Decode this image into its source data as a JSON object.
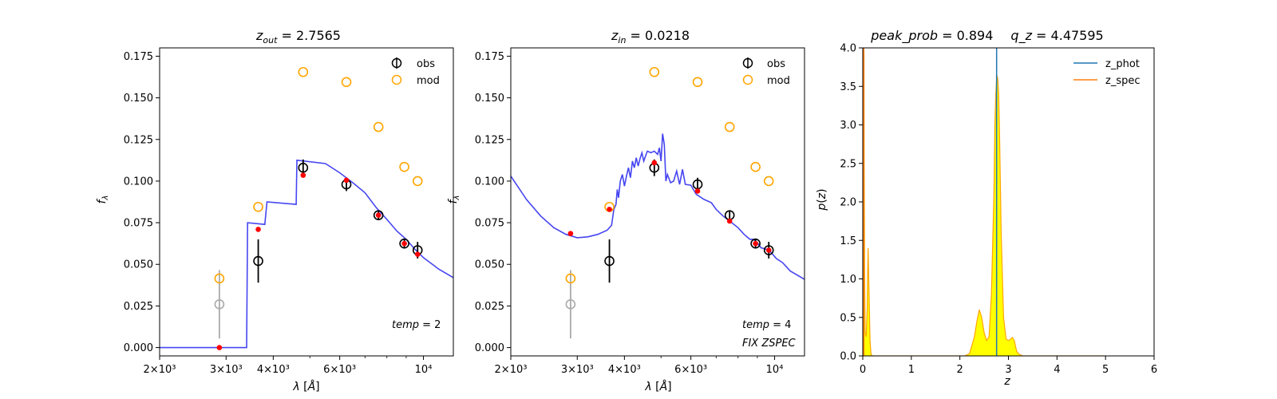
{
  "chart_data": [
    {
      "type": "scatter",
      "title": "z_out = 2.7565",
      "xlabel": "λ [Å]",
      "ylabel": "f_λ",
      "xscale": "log",
      "xlim": [
        2000,
        12000
      ],
      "ylim": [
        -0.005,
        0.18
      ],
      "x_tick_labels": [
        "2×10³",
        "3×10³",
        "4×10³",
        "6×10³",
        "10⁴"
      ],
      "x_ticks": [
        2000,
        3000,
        4000,
        6000,
        10000
      ],
      "y_ticks": [
        0.0,
        0.025,
        0.05,
        0.075,
        0.1,
        0.125,
        0.15,
        0.175
      ],
      "y_tick_labels": [
        "0.000",
        "0.025",
        "0.050",
        "0.075",
        "0.100",
        "0.125",
        "0.150",
        "0.175"
      ],
      "legend": [
        "obs",
        "mod"
      ],
      "legend_position": "top-right",
      "annotation": "temp = 2",
      "series": [
        {
          "name": "obs",
          "color": "#000000",
          "x": [
            3650,
            4800,
            6250,
            7600,
            8900,
            9650
          ],
          "y": [
            0.052,
            0.108,
            0.098,
            0.0795,
            0.0625,
            0.0585
          ],
          "err": [
            0.013,
            0.005,
            0.004,
            0.003,
            0.003,
            0.005
          ]
        },
        {
          "name": "obs_excluded",
          "color": "#aaaaaa",
          "x": [
            2880
          ],
          "y": [
            0.026
          ],
          "err": [
            0.0205
          ]
        },
        {
          "name": "mod",
          "color": "#ffa500",
          "x": [
            2880,
            3650,
            4800,
            6250,
            7600,
            8900,
            9650
          ],
          "y": [
            0.0415,
            0.0845,
            0.1655,
            0.1595,
            0.1325,
            0.1085,
            0.1
          ]
        },
        {
          "name": "model_points",
          "color": "#ff0000",
          "x": [
            2880,
            3650,
            4800,
            6250,
            7600,
            8900,
            9650
          ],
          "y": [
            0.0,
            0.071,
            0.1035,
            0.1005,
            0.0795,
            0.0625,
            0.056
          ]
        },
        {
          "name": "template",
          "color": "#3c3cf0",
          "x": [
            2000,
            3400,
            3420,
            3800,
            3850,
            4600,
            4620,
            5500,
            6000,
            6500,
            7000,
            7500,
            8000,
            8500,
            9000,
            9500,
            10000,
            11000,
            12000
          ],
          "y": [
            0.0,
            0.0,
            0.075,
            0.074,
            0.0875,
            0.086,
            0.1125,
            0.1105,
            0.105,
            0.099,
            0.093,
            0.084,
            0.077,
            0.07,
            0.065,
            0.059,
            0.054,
            0.047,
            0.042
          ]
        }
      ]
    },
    {
      "type": "scatter",
      "title": "z_in = 0.0218",
      "xlabel": "λ [Å]",
      "ylabel": "f_λ",
      "xscale": "log",
      "xlim": [
        2000,
        12000
      ],
      "ylim": [
        -0.005,
        0.18
      ],
      "x_tick_labels": [
        "2×10³",
        "3×10³",
        "4×10³",
        "6×10³",
        "10⁴"
      ],
      "x_ticks": [
        2000,
        3000,
        4000,
        6000,
        10000
      ],
      "y_ticks": [
        0.0,
        0.025,
        0.05,
        0.075,
        0.1,
        0.125,
        0.15,
        0.175
      ],
      "y_tick_labels": [
        "0.000",
        "0.025",
        "0.050",
        "0.075",
        "0.100",
        "0.125",
        "0.150",
        "0.175"
      ],
      "legend": [
        "obs",
        "mod"
      ],
      "legend_position": "top-right",
      "annotations": [
        "temp = 4",
        "FIX ZSPEC"
      ],
      "series": [
        {
          "name": "obs",
          "color": "#000000",
          "x": [
            3650,
            4800,
            6250,
            7600,
            8900,
            9650
          ],
          "y": [
            0.052,
            0.108,
            0.098,
            0.0795,
            0.0625,
            0.0585
          ],
          "err": [
            0.013,
            0.005,
            0.004,
            0.003,
            0.003,
            0.005
          ]
        },
        {
          "name": "obs_excluded",
          "color": "#aaaaaa",
          "x": [
            2880
          ],
          "y": [
            0.026
          ],
          "err": [
            0.0205
          ]
        },
        {
          "name": "mod",
          "color": "#ffa500",
          "x": [
            2880,
            3650,
            4800,
            6250,
            7600,
            8900,
            9650
          ],
          "y": [
            0.0415,
            0.0845,
            0.1655,
            0.1595,
            0.1325,
            0.1085,
            0.1
          ]
        },
        {
          "name": "model_points",
          "color": "#ff0000",
          "x": [
            2880,
            3650,
            4800,
            6250,
            7600,
            8900,
            9650
          ],
          "y": [
            0.0685,
            0.083,
            0.111,
            0.094,
            0.076,
            0.0625,
            0.0585
          ]
        },
        {
          "name": "template",
          "color": "#3c3cf0",
          "x": [
            2000,
            2200,
            2400,
            2600,
            2800,
            3000,
            3200,
            3400,
            3600,
            3700,
            3750,
            3800,
            3830,
            3860,
            3900,
            3950,
            4000,
            4050,
            4100,
            4150,
            4200,
            4250,
            4300,
            4350,
            4400,
            4450,
            4500,
            4550,
            4600,
            4700,
            4800,
            4900,
            4950,
            5000,
            5050,
            5100,
            5150,
            5200,
            5300,
            5400,
            5500,
            5600,
            5700,
            5800,
            6000,
            6200,
            6500,
            6800,
            7000,
            7300,
            7600,
            8000,
            8300,
            8600,
            8800,
            9000,
            9200,
            9500,
            9800,
            10100,
            10500,
            11000,
            12000
          ],
          "y": [
            0.103,
            0.089,
            0.079,
            0.072,
            0.068,
            0.066,
            0.0665,
            0.068,
            0.0705,
            0.0735,
            0.083,
            0.086,
            0.095,
            0.09,
            0.1,
            0.104,
            0.097,
            0.103,
            0.108,
            0.102,
            0.112,
            0.108,
            0.114,
            0.109,
            0.1135,
            0.117,
            0.112,
            0.115,
            0.118,
            0.117,
            0.118,
            0.116,
            0.12,
            0.112,
            0.1285,
            0.122,
            0.1,
            0.104,
            0.099,
            0.1,
            0.106,
            0.098,
            0.107,
            0.098,
            0.0975,
            0.092,
            0.089,
            0.087,
            0.083,
            0.079,
            0.076,
            0.072,
            0.068,
            0.065,
            0.065,
            0.063,
            0.06,
            0.059,
            0.057,
            0.0535,
            0.051,
            0.046,
            0.041
          ]
        }
      ]
    },
    {
      "type": "area",
      "title": "peak_prob = 0.894     q_z = 4.47595",
      "xlabel": "z",
      "ylabel": "p(z)",
      "xlim": [
        0,
        6
      ],
      "ylim": [
        0,
        4.0
      ],
      "x_ticks": [
        0,
        1,
        2,
        3,
        4,
        5,
        6
      ],
      "x_tick_labels": [
        "0",
        "1",
        "2",
        "3",
        "4",
        "5",
        "6"
      ],
      "y_ticks": [
        0.0,
        0.5,
        1.0,
        1.5,
        2.0,
        2.5,
        3.0,
        3.5,
        4.0
      ],
      "y_tick_labels": [
        "0.0",
        "0.5",
        "1.0",
        "1.5",
        "2.0",
        "2.5",
        "3.0",
        "3.5",
        "4.0"
      ],
      "legend": [
        "z_phot",
        "z_spec"
      ],
      "legend_position": "top-right",
      "z_phot": 2.7565,
      "z_spec": 0.0218,
      "fill_color": "#ffff00",
      "curve_color": "#ffa500",
      "series": [
        {
          "name": "p(z)",
          "x": [
            0.0,
            0.01,
            0.02,
            0.025,
            0.03,
            0.04,
            0.05,
            0.07,
            0.09,
            0.1,
            0.11,
            0.13,
            0.15,
            0.17,
            0.2,
            0.25,
            1.5,
            2.1,
            2.2,
            2.3,
            2.35,
            2.4,
            2.45,
            2.5,
            2.55,
            2.6,
            2.65,
            2.7,
            2.72,
            2.74,
            2.76,
            2.78,
            2.8,
            2.82,
            2.85,
            2.9,
            2.95,
            3.0,
            3.05,
            3.08,
            3.12,
            3.17,
            3.22,
            3.3,
            3.5,
            5.0
          ],
          "y": [
            0.02,
            3.5,
            4.05,
            3.9,
            2.5,
            1.0,
            0.3,
            0.25,
            0.6,
            1.05,
            1.4,
            0.8,
            0.2,
            0.02,
            0.0,
            0.0,
            0.0,
            0.0,
            0.03,
            0.25,
            0.45,
            0.6,
            0.5,
            0.3,
            0.2,
            0.25,
            0.8,
            2.1,
            3.0,
            3.4,
            3.65,
            3.6,
            3.4,
            2.8,
            1.6,
            0.5,
            0.22,
            0.2,
            0.22,
            0.24,
            0.2,
            0.06,
            0.02,
            0.0,
            0.0,
            0.0
          ]
        }
      ]
    }
  ]
}
